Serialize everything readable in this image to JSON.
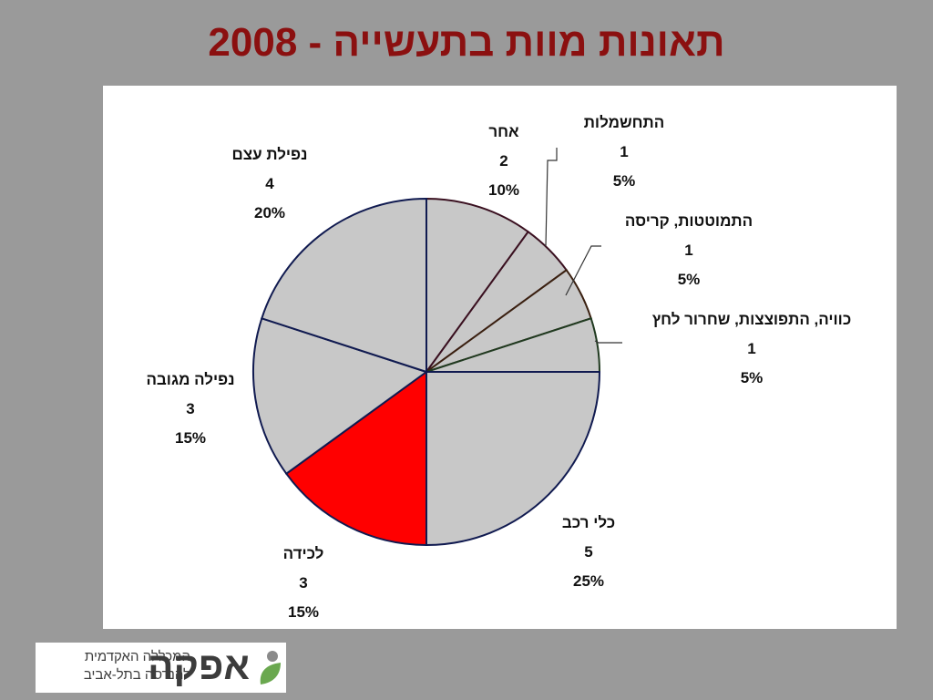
{
  "title": "תאונות מוות בתעשייה - 2008",
  "chart_data": {
    "type": "pie",
    "title": "תאונות מוות בתעשייה - 2008",
    "slices": [
      {
        "label": "אחר",
        "value": 2,
        "percent": "10%",
        "color": "#c8c8c8"
      },
      {
        "label": "התחשמלות",
        "value": 1,
        "percent": "5%",
        "color": "#c8c8c8"
      },
      {
        "label": "התמוטטות, קריסה",
        "value": 1,
        "percent": "5%",
        "color": "#c8c8c8"
      },
      {
        "label": "כוויה, התפוצצות, שחרור לחץ",
        "value": 1,
        "percent": "5%",
        "color": "#c8c8c8"
      },
      {
        "label": "כלי רכב",
        "value": 5,
        "percent": "25%",
        "color": "#c8c8c8"
      },
      {
        "label": "לכידה",
        "value": 3,
        "percent": "15%",
        "color": "#ff0000"
      },
      {
        "label": "נפילה מגובה",
        "value": 3,
        "percent": "15%",
        "color": "#c8c8c8"
      },
      {
        "label": "נפילת עצם",
        "value": 4,
        "percent": "20%",
        "color": "#c8c8c8"
      }
    ],
    "start": "12 o'clock",
    "direction": "clockwise",
    "legend": "none"
  },
  "logo": {
    "name": "אפקה",
    "tagline_line1": "המכללה האקדמית",
    "tagline_line2": "להנדסה בתל-אביב",
    "leaf_color": "#6aa84f"
  }
}
